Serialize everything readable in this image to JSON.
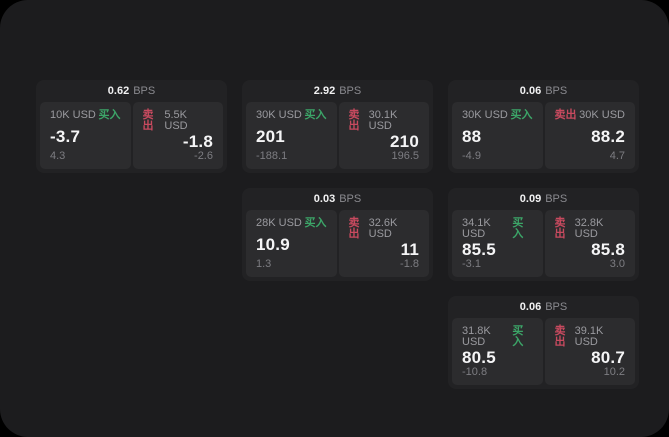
{
  "labels": {
    "buy": "买入",
    "sell": "卖出",
    "bps_unit": "BPS"
  },
  "colors": {
    "buy_green": "#3ca568",
    "sell_red": "#c84a5f",
    "panel_bg": "#1c1c1e",
    "card_bg": "#222224",
    "tile_bg": "#2c2c2e"
  },
  "cards": [
    {
      "bps": "0.62",
      "buy": {
        "size": "10K USD",
        "value": "-3.7",
        "sub": "4.3"
      },
      "sell": {
        "size": "5.5K USD",
        "value": "-1.8",
        "sub": "-2.6"
      }
    },
    {
      "bps": "2.92",
      "buy": {
        "size": "30K USD",
        "value": "201",
        "sub": "-188.1"
      },
      "sell": {
        "size": "30.1K USD",
        "value": "210",
        "sub": "196.5"
      }
    },
    {
      "bps": "0.06",
      "buy": {
        "size": "30K USD",
        "value": "88",
        "sub": "-4.9"
      },
      "sell": {
        "size": "30K USD",
        "value": "88.2",
        "sub": "4.7"
      }
    },
    {
      "bps": "0.03",
      "buy": {
        "size": "28K USD",
        "value": "10.9",
        "sub": "1.3"
      },
      "sell": {
        "size": "32.6K USD",
        "value": "11",
        "sub": "-1.8"
      }
    },
    {
      "bps": "0.09",
      "buy": {
        "size": "34.1K USD",
        "value": "85.5",
        "sub": "-3.1"
      },
      "sell": {
        "size": "32.8K USD",
        "value": "85.8",
        "sub": "3.0"
      }
    },
    {
      "bps": "0.06",
      "buy": {
        "size": "31.8K USD",
        "value": "80.5",
        "sub": "-10.8"
      },
      "sell": {
        "size": "39.1K USD",
        "value": "80.7",
        "sub": "10.2"
      }
    }
  ]
}
